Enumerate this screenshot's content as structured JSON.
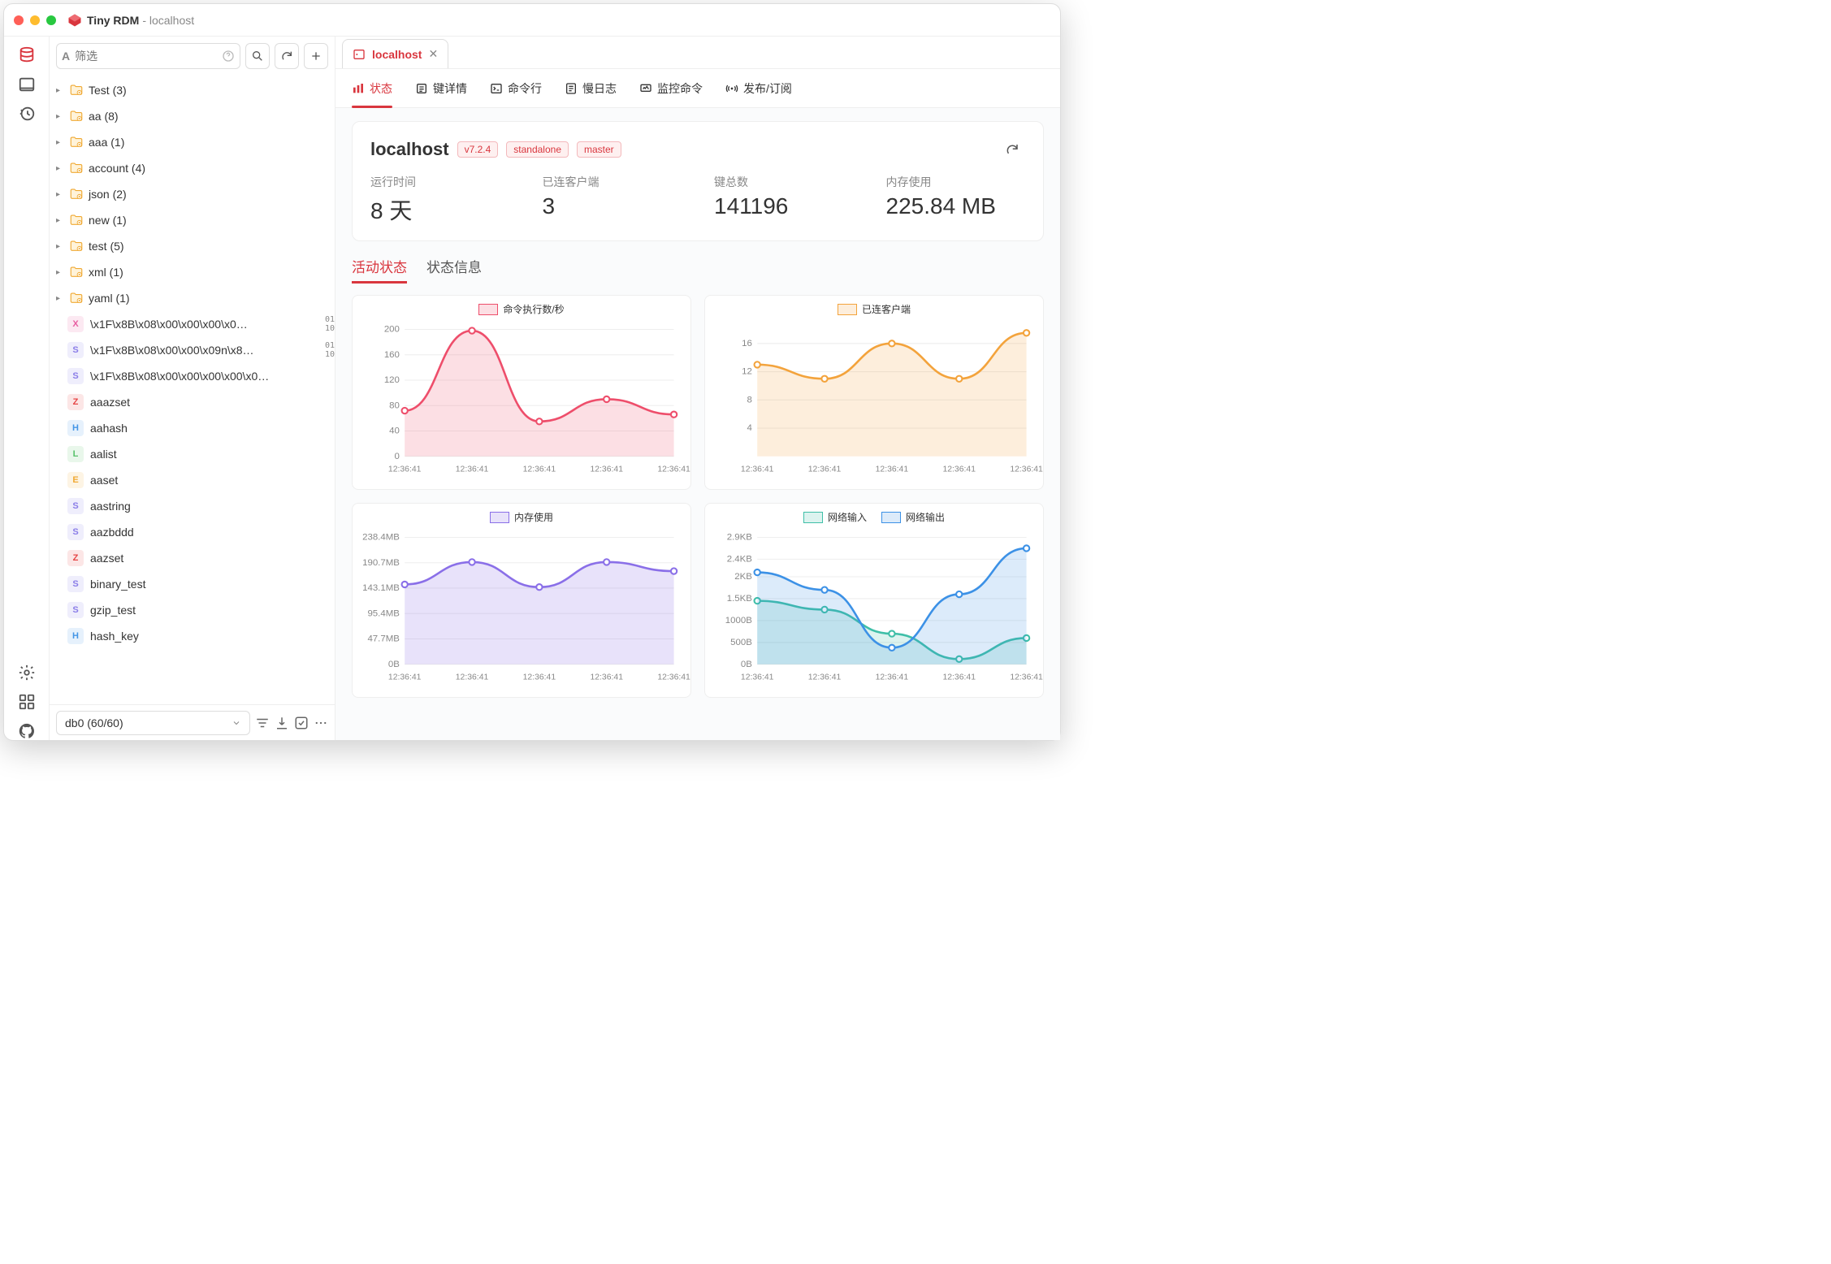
{
  "app": {
    "name": "Tiny RDM",
    "host": "localhost"
  },
  "traffic_colors": {
    "red": "#ff5f57",
    "yellow": "#febc2e",
    "green": "#28c840"
  },
  "filter": {
    "prefix": "A",
    "placeholder": "筛选"
  },
  "rail": [
    {
      "name": "database-icon",
      "active": true
    },
    {
      "name": "terminal-icon",
      "active": false
    },
    {
      "name": "history-icon",
      "active": false
    }
  ],
  "rail_bottom": [
    {
      "name": "settings-icon"
    },
    {
      "name": "apps-icon"
    },
    {
      "name": "github-icon"
    }
  ],
  "tree_folders": [
    {
      "label": "Test (3)"
    },
    {
      "label": "aa (8)"
    },
    {
      "label": "aaa (1)"
    },
    {
      "label": "account (4)"
    },
    {
      "label": "json (2)"
    },
    {
      "label": "new (1)"
    },
    {
      "label": "test (5)"
    },
    {
      "label": "xml (1)"
    },
    {
      "label": "yaml (1)"
    }
  ],
  "tree_keys": [
    {
      "type": "X",
      "color": "#e85da1",
      "label": "\\x1F\\x8B\\x08\\x00\\x00\\x00\\x0…",
      "bin": true
    },
    {
      "type": "S",
      "color": "#8a7de8",
      "label": "\\x1F\\x8B\\x08\\x00\\x00\\x09n\\x8…",
      "bin": true
    },
    {
      "type": "S",
      "color": "#8a7de8",
      "label": "\\x1F\\x8B\\x08\\x00\\x00\\x00\\x00\\x0…",
      "bin": false
    },
    {
      "type": "Z",
      "color": "#e64545",
      "label": "aaazset"
    },
    {
      "type": "H",
      "color": "#4596e6",
      "label": "aahash"
    },
    {
      "type": "L",
      "color": "#57c26b",
      "label": "aalist"
    },
    {
      "type": "E",
      "color": "#f0a933",
      "label": "aaset"
    },
    {
      "type": "S",
      "color": "#8a7de8",
      "label": "aastring"
    },
    {
      "type": "S",
      "color": "#8a7de8",
      "label": "aazbddd"
    },
    {
      "type": "Z",
      "color": "#e64545",
      "label": "aazset"
    },
    {
      "type": "S",
      "color": "#8a7de8",
      "label": "binary_test"
    },
    {
      "type": "S",
      "color": "#8a7de8",
      "label": "gzip_test"
    },
    {
      "type": "H",
      "color": "#4596e6",
      "label": "hash_key"
    }
  ],
  "db_selector": "db0 (60/60)",
  "tab": {
    "label": "localhost"
  },
  "navtabs": [
    {
      "label": "状态",
      "icon": "status-icon",
      "active": true
    },
    {
      "label": "键详情",
      "icon": "keydetail-icon"
    },
    {
      "label": "命令行",
      "icon": "cli-icon"
    },
    {
      "label": "慢日志",
      "icon": "slowlog-icon"
    },
    {
      "label": "监控命令",
      "icon": "monitor-icon"
    },
    {
      "label": "发布/订阅",
      "icon": "pubsub-icon"
    }
  ],
  "status_header": {
    "host": "localhost",
    "version": "v7.2.4",
    "mode": "standalone",
    "role": "master"
  },
  "stats": [
    {
      "label": "运行时间",
      "value": "8 天"
    },
    {
      "label": "已连客户端",
      "value": "3"
    },
    {
      "label": "键总数",
      "value": "141196"
    },
    {
      "label": "内存使用",
      "value": "225.84 MB"
    }
  ],
  "subtabs": [
    {
      "label": "活动状态",
      "active": true
    },
    {
      "label": "状态信息",
      "active": false
    }
  ],
  "charts": {
    "xlabels": [
      "12:36:41",
      "12:36:41",
      "12:36:41",
      "12:36:41",
      "12:36:41"
    ],
    "cmd": {
      "title": "命令执行数/秒",
      "color": "#ee4e6b",
      "fill": "rgba(238,78,107,0.18)",
      "yticks": [
        0,
        40,
        80,
        120,
        160,
        200
      ],
      "values": [
        72,
        198,
        55,
        90,
        66
      ]
    },
    "clients": {
      "title": "已连客户端",
      "color": "#f3a33c",
      "fill": "rgba(243,163,60,0.18)",
      "yticks": [
        4,
        8,
        12,
        16
      ],
      "ymin": 0,
      "ymax": 18,
      "values": [
        13,
        11,
        16,
        11,
        17.5
      ]
    },
    "memory": {
      "title": "内存使用",
      "color": "#8a6fe8",
      "fill": "rgba(138,111,232,0.20)",
      "ylabels": [
        "0B",
        "47.7MB",
        "95.4MB",
        "143.1MB",
        "190.7MB",
        "238.4MB"
      ],
      "yticks": [
        0,
        47.7,
        95.4,
        143.1,
        190.7,
        238.4
      ],
      "values": [
        150,
        192,
        145,
        192,
        175
      ]
    },
    "network": {
      "series": [
        {
          "title": "网络输入",
          "color": "#3fbfa8",
          "fill": "rgba(63,191,168,0.18)",
          "values": [
            1450,
            1250,
            700,
            120,
            600
          ]
        },
        {
          "title": "网络输出",
          "color": "#3c91e6",
          "fill": "rgba(60,145,230,0.18)",
          "values": [
            2100,
            1700,
            380,
            1600,
            2650
          ]
        }
      ],
      "ylabels": [
        "0B",
        "500B",
        "1000B",
        "1.5KB",
        "2KB",
        "2.4KB",
        "2.9KB"
      ],
      "yticks": [
        0,
        500,
        1000,
        1500,
        2000,
        2400,
        2900
      ]
    }
  },
  "colors": {
    "accent": "#d9363e",
    "folder_stroke": "#f0a933",
    "border": "#eeeeee"
  }
}
